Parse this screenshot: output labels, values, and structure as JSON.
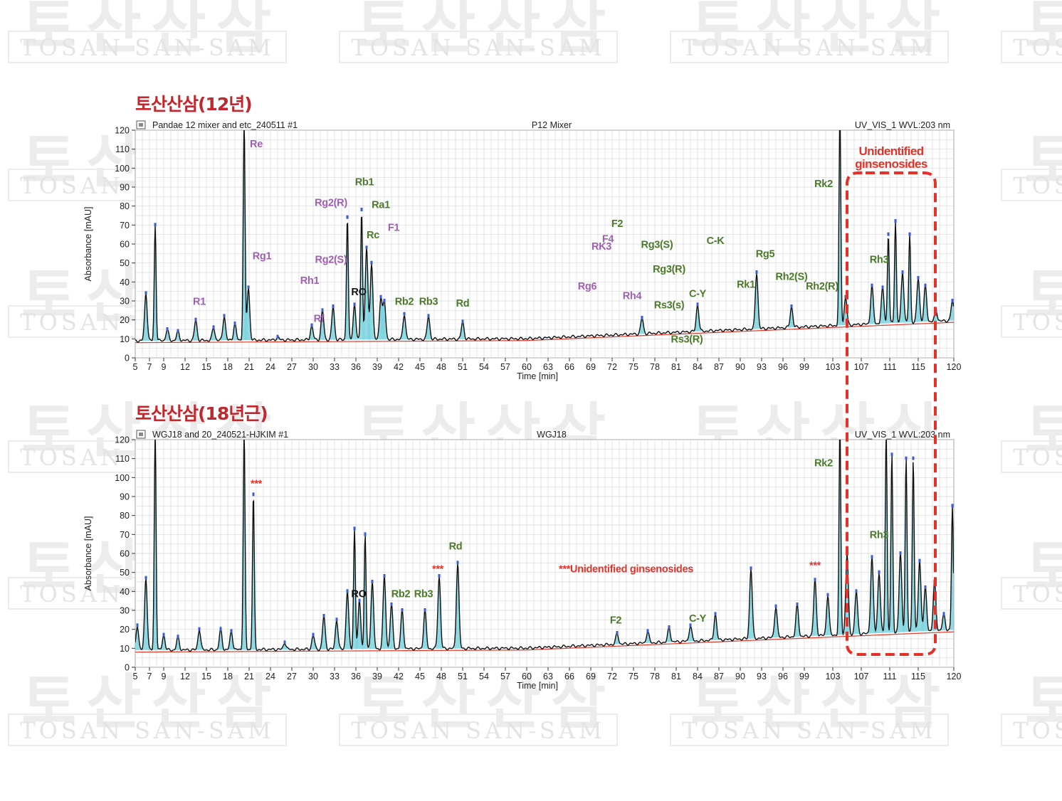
{
  "watermark": {
    "hangul": "토산산삼",
    "latin": "TOSAN SAN-SAM"
  },
  "annotation": {
    "unidentified_line1": "Unidentified",
    "unidentified_line2": "ginsenosides"
  },
  "colors": {
    "title": "#c1272d",
    "green_label": "#4a7a2a",
    "purple_label": "#a05fb5",
    "black_label": "#111111",
    "annotation_red": "#e53128",
    "trace": "#111111",
    "peak_fill": "#7dd3df",
    "baseline": "#e23b2e",
    "grid": "#d8d8d8"
  },
  "chart_data": [
    {
      "type": "line",
      "title": "토산산삼(12년)",
      "header_left": "Pandae 12 mixer and etc_240511 #1",
      "header_center": "P12 Mixer",
      "header_right": "UV_VIS_1 WVL:203 nm",
      "xlabel": "Time [min]",
      "ylabel": "Absorbance [mAU]",
      "xlim": [
        5,
        120
      ],
      "ylim": [
        0,
        120
      ],
      "xticks": [
        "5",
        "7",
        "9",
        "12",
        "15",
        "18",
        "21",
        "24",
        "27",
        "30",
        "33",
        "36",
        "39",
        "42",
        "45",
        "48",
        "51",
        "54",
        "57",
        "60",
        "63",
        "66",
        "69",
        "72",
        "75",
        "78",
        "81",
        "84",
        "87",
        "90",
        "93",
        "96",
        "99",
        "103",
        "107",
        "111",
        "115",
        "120"
      ],
      "yticks": [
        "0",
        "10",
        "20",
        "30",
        "40",
        "50",
        "60",
        "70",
        "80",
        "90",
        "100",
        "110",
        "120"
      ],
      "grid": true,
      "baseline_y": 10,
      "peaks": [
        {
          "x": 6.5,
          "y": 34
        },
        {
          "x": 7.8,
          "y": 70
        },
        {
          "x": 9.5,
          "y": 15
        },
        {
          "x": 11,
          "y": 14
        },
        {
          "x": 13.5,
          "y": 20
        },
        {
          "x": 16,
          "y": 16
        },
        {
          "x": 17.5,
          "y": 22
        },
        {
          "x": 19,
          "y": 18
        },
        {
          "x": 20.3,
          "y": 125
        },
        {
          "x": 20.9,
          "y": 37
        },
        {
          "x": 25,
          "y": 11
        },
        {
          "x": 29.8,
          "y": 17
        },
        {
          "x": 31.3,
          "y": 25
        },
        {
          "x": 32.8,
          "y": 27
        },
        {
          "x": 34.8,
          "y": 74
        },
        {
          "x": 35.8,
          "y": 28
        },
        {
          "x": 36.8,
          "y": 78
        },
        {
          "x": 37.5,
          "y": 58
        },
        {
          "x": 38.2,
          "y": 50
        },
        {
          "x": 39.5,
          "y": 32
        },
        {
          "x": 40,
          "y": 30
        },
        {
          "x": 42.8,
          "y": 23
        },
        {
          "x": 46.2,
          "y": 22
        },
        {
          "x": 51,
          "y": 19
        },
        {
          "x": 76.2,
          "y": 21
        },
        {
          "x": 84,
          "y": 28
        },
        {
          "x": 92.3,
          "y": 45
        },
        {
          "x": 97.2,
          "y": 27
        },
        {
          "x": 104,
          "y": 130
        },
        {
          "x": 104.8,
          "y": 32
        },
        {
          "x": 108.5,
          "y": 38
        },
        {
          "x": 110,
          "y": 37
        },
        {
          "x": 110.8,
          "y": 65
        },
        {
          "x": 111.8,
          "y": 72
        },
        {
          "x": 112.8,
          "y": 45
        },
        {
          "x": 113.8,
          "y": 65
        },
        {
          "x": 115,
          "y": 42
        },
        {
          "x": 116,
          "y": 38
        },
        {
          "x": 117.5,
          "y": 25
        },
        {
          "x": 119.8,
          "y": 30
        }
      ],
      "labels": [
        {
          "text": "R1",
          "color": "purple",
          "x": 14,
          "y": 28
        },
        {
          "text": "Re",
          "color": "purple",
          "x": 22,
          "y": 111
        },
        {
          "text": "Rg1",
          "color": "purple",
          "x": 22.8,
          "y": 52
        },
        {
          "text": "Rh1",
          "color": "purple",
          "x": 29.5,
          "y": 39
        },
        {
          "text": "Rf",
          "color": "purple",
          "x": 30.8,
          "y": 19
        },
        {
          "text": "Rg2(S)",
          "color": "purple",
          "x": 32.5,
          "y": 50
        },
        {
          "text": "Rg2(R)",
          "color": "purple",
          "x": 32.5,
          "y": 80
        },
        {
          "text": "RO",
          "color": "black",
          "x": 36.4,
          "y": 33
        },
        {
          "text": "Rb1",
          "color": "green",
          "x": 37.2,
          "y": 91
        },
        {
          "text": "Ra1",
          "color": "green",
          "x": 39.5,
          "y": 79
        },
        {
          "text": "Rc",
          "color": "green",
          "x": 38.4,
          "y": 63
        },
        {
          "text": "F1",
          "color": "purple",
          "x": 41.3,
          "y": 67
        },
        {
          "text": "Rb2",
          "color": "green",
          "x": 42.8,
          "y": 28
        },
        {
          "text": "Rb3",
          "color": "green",
          "x": 46.2,
          "y": 28
        },
        {
          "text": "Rd",
          "color": "green",
          "x": 51,
          "y": 27
        },
        {
          "text": "Rg6",
          "color": "purple",
          "x": 68.5,
          "y": 36
        },
        {
          "text": "RK3",
          "color": "purple",
          "x": 70.5,
          "y": 57
        },
        {
          "text": "F4",
          "color": "purple",
          "x": 71.4,
          "y": 61
        },
        {
          "text": "F2",
          "color": "green",
          "x": 72.7,
          "y": 69
        },
        {
          "text": "Rh4",
          "color": "purple",
          "x": 74.8,
          "y": 31
        },
        {
          "text": "Rg3(S)",
          "color": "green",
          "x": 78.3,
          "y": 58
        },
        {
          "text": "Rg3(R)",
          "color": "green",
          "x": 80,
          "y": 45
        },
        {
          "text": "Rs3(s)",
          "color": "green",
          "x": 80,
          "y": 26
        },
        {
          "text": "Rs3(R)",
          "color": "green",
          "x": 82.5,
          "y": 8
        },
        {
          "text": "C-Y",
          "color": "green",
          "x": 84,
          "y": 32
        },
        {
          "text": "C-K",
          "color": "green",
          "x": 86.5,
          "y": 60
        },
        {
          "text": "Rk1",
          "color": "green",
          "x": 90.8,
          "y": 37
        },
        {
          "text": "Rg5",
          "color": "green",
          "x": 93.5,
          "y": 53
        },
        {
          "text": "Rh2(S)",
          "color": "green",
          "x": 97.2,
          "y": 41
        },
        {
          "text": "Rh2(R)",
          "color": "green",
          "x": 101.5,
          "y": 36
        },
        {
          "text": "Rk2",
          "color": "green",
          "x": 101.7,
          "y": 90
        },
        {
          "text": "Rh3",
          "color": "green",
          "x": 109.5,
          "y": 50
        }
      ]
    },
    {
      "type": "line",
      "title": "토산산삼(18년근)",
      "header_left": "WGJ18 and 20_240521-HJKIM #1",
      "header_center": "WGJ18",
      "header_right": "UV_VIS_1 WVL:203 nm",
      "xlabel": "Time [min]",
      "ylabel": "Absorbance [mAU]",
      "xlim": [
        5,
        120
      ],
      "ylim": [
        0,
        120
      ],
      "xticks": [
        "5",
        "7",
        "9",
        "12",
        "15",
        "18",
        "21",
        "24",
        "27",
        "30",
        "33",
        "36",
        "39",
        "42",
        "45",
        "48",
        "51",
        "54",
        "57",
        "60",
        "63",
        "66",
        "69",
        "72",
        "75",
        "78",
        "81",
        "84",
        "87",
        "90",
        "93",
        "96",
        "99",
        "103",
        "107",
        "111",
        "115",
        "120"
      ],
      "yticks": [
        "0",
        "10",
        "20",
        "30",
        "40",
        "50",
        "60",
        "70",
        "80",
        "90",
        "100",
        "110",
        "120"
      ],
      "grid": true,
      "baseline_y": 10,
      "peaks": [
        {
          "x": 5.3,
          "y": 22
        },
        {
          "x": 6.5,
          "y": 47
        },
        {
          "x": 7.8,
          "y": 125
        },
        {
          "x": 9,
          "y": 17
        },
        {
          "x": 11,
          "y": 16
        },
        {
          "x": 14,
          "y": 20
        },
        {
          "x": 17,
          "y": 20
        },
        {
          "x": 18.5,
          "y": 19
        },
        {
          "x": 20.3,
          "y": 125
        },
        {
          "x": 21.6,
          "y": 91
        },
        {
          "x": 26,
          "y": 13
        },
        {
          "x": 30,
          "y": 17
        },
        {
          "x": 31.5,
          "y": 27
        },
        {
          "x": 33.3,
          "y": 25
        },
        {
          "x": 34.8,
          "y": 40
        },
        {
          "x": 35.8,
          "y": 73
        },
        {
          "x": 36.5,
          "y": 35
        },
        {
          "x": 37.3,
          "y": 70
        },
        {
          "x": 38.3,
          "y": 45
        },
        {
          "x": 40,
          "y": 48
        },
        {
          "x": 41,
          "y": 33
        },
        {
          "x": 42.5,
          "y": 30
        },
        {
          "x": 45.7,
          "y": 30
        },
        {
          "x": 47.7,
          "y": 48
        },
        {
          "x": 50.3,
          "y": 55
        },
        {
          "x": 72.7,
          "y": 18
        },
        {
          "x": 77,
          "y": 19
        },
        {
          "x": 80,
          "y": 21
        },
        {
          "x": 83,
          "y": 22
        },
        {
          "x": 86.5,
          "y": 28
        },
        {
          "x": 91.5,
          "y": 52
        },
        {
          "x": 95,
          "y": 32
        },
        {
          "x": 98,
          "y": 33
        },
        {
          "x": 100.5,
          "y": 46
        },
        {
          "x": 102.3,
          "y": 38
        },
        {
          "x": 104,
          "y": 128
        },
        {
          "x": 105,
          "y": 60
        },
        {
          "x": 106.3,
          "y": 40
        },
        {
          "x": 108.5,
          "y": 58
        },
        {
          "x": 109.5,
          "y": 50
        },
        {
          "x": 110.5,
          "y": 125
        },
        {
          "x": 111.3,
          "y": 112
        },
        {
          "x": 112.5,
          "y": 60
        },
        {
          "x": 113.3,
          "y": 110
        },
        {
          "x": 114.3,
          "y": 110
        },
        {
          "x": 115.2,
          "y": 56
        },
        {
          "x": 116,
          "y": 42
        },
        {
          "x": 117.3,
          "y": 45
        },
        {
          "x": 118.6,
          "y": 28
        },
        {
          "x": 119.8,
          "y": 85
        }
      ],
      "labels": [
        {
          "text": "***",
          "color": "red",
          "x": 22,
          "y": 95
        },
        {
          "text": "RO",
          "color": "black",
          "x": 36.4,
          "y": 37
        },
        {
          "text": "Rb2",
          "color": "green",
          "x": 42.3,
          "y": 37
        },
        {
          "text": "Rb3",
          "color": "green",
          "x": 45.5,
          "y": 37
        },
        {
          "text": "***",
          "color": "red",
          "x": 47.5,
          "y": 50
        },
        {
          "text": "Rd",
          "color": "green",
          "x": 50,
          "y": 62
        },
        {
          "text": "***Unidentified ginsenosides",
          "color": "red",
          "x": 64.5,
          "y": 50
        },
        {
          "text": "F2",
          "color": "green",
          "x": 72.5,
          "y": 23
        },
        {
          "text": "C-Y",
          "color": "green",
          "x": 84,
          "y": 24
        },
        {
          "text": "***",
          "color": "red",
          "x": 100.5,
          "y": 52
        },
        {
          "text": "Rk2",
          "color": "green",
          "x": 101.7,
          "y": 106
        },
        {
          "text": "Rh3",
          "color": "green",
          "x": 109.5,
          "y": 68
        }
      ]
    }
  ]
}
